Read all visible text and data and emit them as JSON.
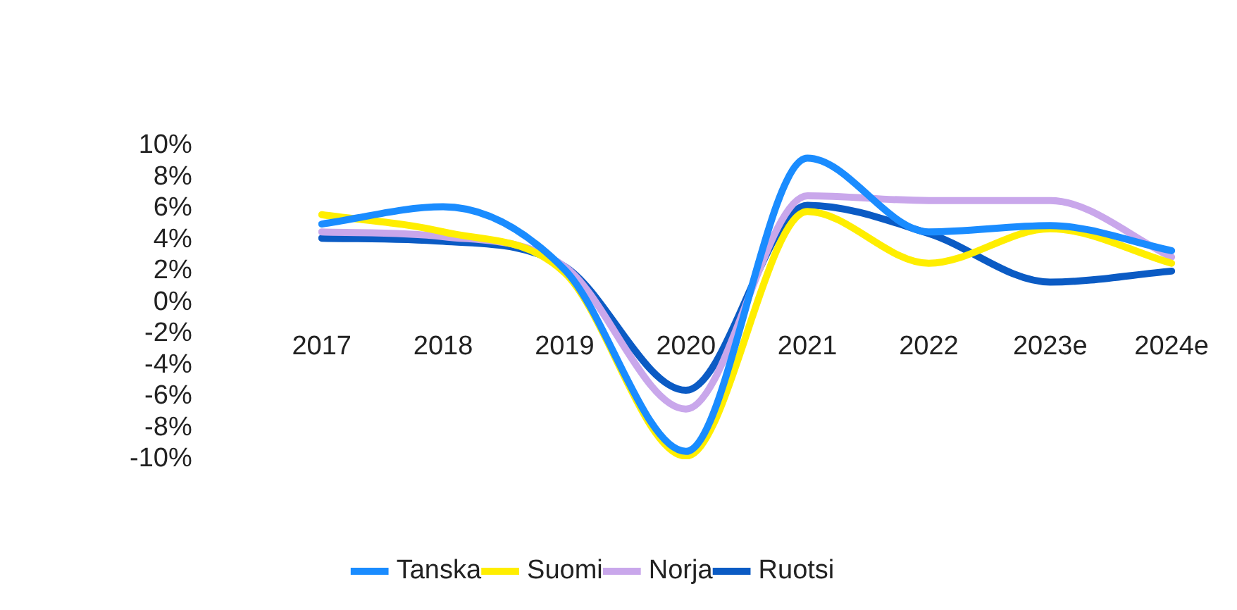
{
  "chart_data": {
    "type": "line",
    "categories": [
      "2017",
      "2018",
      "2019",
      "2020",
      "2021",
      "2022",
      "2023e",
      "2024e"
    ],
    "series": [
      {
        "name": "Tanska",
        "color": "#1a8cff",
        "values": [
          5.0,
          6.1,
          2.1,
          -9.5,
          9.2,
          4.5,
          4.9,
          3.3
        ]
      },
      {
        "name": "Suomi",
        "color": "#ffee00",
        "values": [
          5.6,
          4.5,
          1.9,
          -9.8,
          5.8,
          2.5,
          4.7,
          2.5
        ]
      },
      {
        "name": "Norja",
        "color": "#c9a7eb",
        "values": [
          4.5,
          4.2,
          2.3,
          -6.8,
          6.8,
          6.5,
          6.5,
          2.9
        ]
      },
      {
        "name": "Ruotsi",
        "color": "#0b5bc4",
        "values": [
          4.1,
          3.9,
          2.3,
          -5.6,
          6.2,
          4.4,
          1.3,
          2.0
        ]
      }
    ],
    "ylim": [
      -10,
      10
    ],
    "yticks": [
      {
        "value": -10,
        "label": "-10%"
      },
      {
        "value": -8,
        "label": "-8%"
      },
      {
        "value": -6,
        "label": "-6%"
      },
      {
        "value": -4,
        "label": "-4%"
      },
      {
        "value": -2,
        "label": "-2%"
      },
      {
        "value": 0,
        "label": "0%"
      },
      {
        "value": 2,
        "label": "2%"
      },
      {
        "value": 4,
        "label": "4%"
      },
      {
        "value": 6,
        "label": "6%"
      },
      {
        "value": 8,
        "label": "8%"
      },
      {
        "value": 10,
        "label": "10%"
      }
    ],
    "grid": false,
    "legend": "bottom",
    "marker": "none",
    "line_style": "solid"
  }
}
